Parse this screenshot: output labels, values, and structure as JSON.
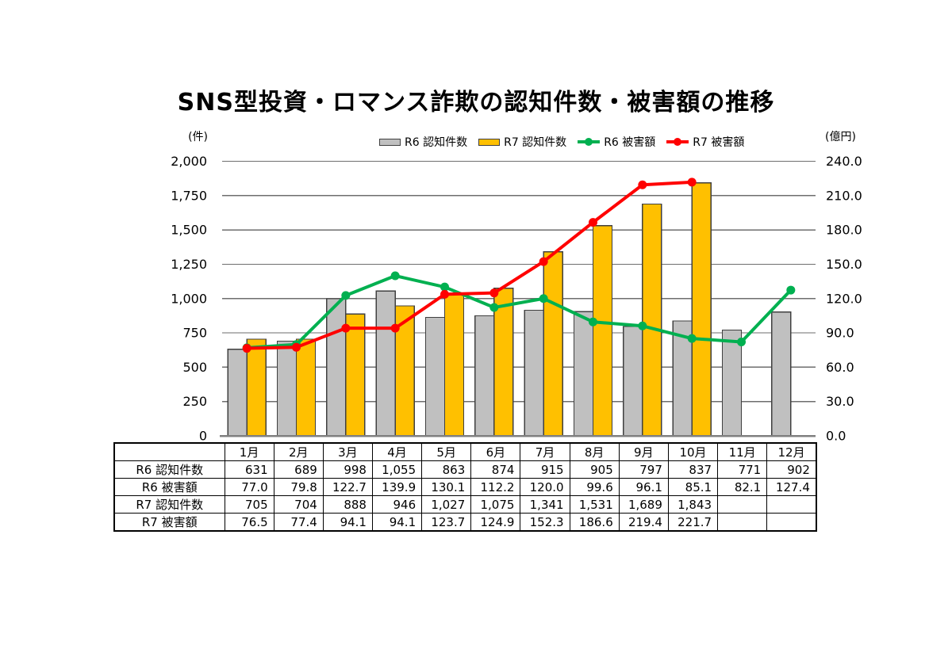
{
  "title": "SNS型投資・ロマンス詐欺の認知件数・被害額の推移",
  "chart_data": {
    "type": "combo-bar-line",
    "grid": true,
    "legend_position": "top",
    "categories": [
      "1月",
      "2月",
      "3月",
      "4月",
      "5月",
      "6月",
      "7月",
      "8月",
      "9月",
      "10月",
      "11月",
      "12月"
    ],
    "left_axis": {
      "unit": "(件)",
      "min": 0,
      "max": 2000,
      "step": 250
    },
    "right_axis": {
      "unit": "(億円)",
      "min": 0,
      "max": 240,
      "step": 30
    },
    "series": [
      {
        "name": "R6 認知件数",
        "type": "bar",
        "axis": "left",
        "color": "#c0c0c0",
        "border": "#404040",
        "values": [
          631,
          689,
          998,
          1055,
          863,
          874,
          915,
          905,
          797,
          837,
          771,
          902
        ]
      },
      {
        "name": "R7 認知件数",
        "type": "bar",
        "axis": "left",
        "color": "#ffc000",
        "border": "#404040",
        "values": [
          705,
          704,
          888,
          946,
          1027,
          1075,
          1341,
          1531,
          1689,
          1843,
          null,
          null
        ]
      },
      {
        "name": "R6 被害額",
        "type": "line",
        "axis": "right",
        "color": "#00b050",
        "values": [
          77.0,
          79.8,
          122.7,
          139.9,
          130.1,
          112.2,
          120.0,
          99.6,
          96.1,
          85.1,
          82.1,
          127.4
        ]
      },
      {
        "name": "R7 被害額",
        "type": "line",
        "axis": "right",
        "color": "#ff0000",
        "values": [
          76.5,
          77.4,
          94.1,
          94.1,
          123.7,
          124.9,
          152.3,
          186.6,
          219.4,
          221.7,
          null,
          null
        ]
      }
    ],
    "colors": {
      "gridline": "#6e6e6e",
      "axis_line": "#808080"
    }
  },
  "table": {
    "corner_label": "",
    "row_series_order": [
      0,
      2,
      1,
      3
    ]
  }
}
